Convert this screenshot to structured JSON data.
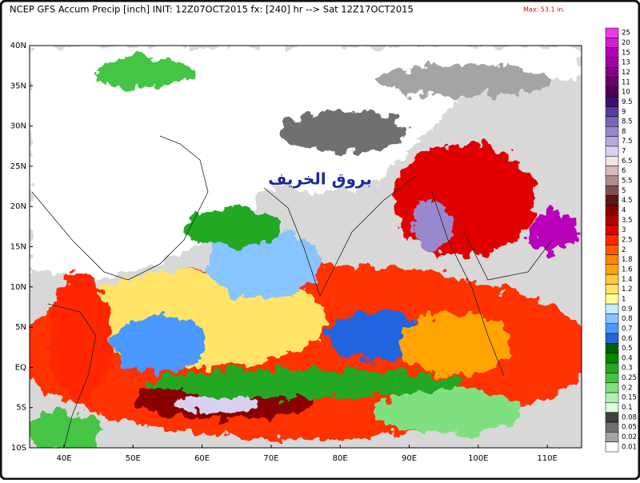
{
  "header": {
    "title": "NCEP GFS Accum Precip [inch] INIT: 12Z07OCT2015 fx: [240] hr --> Sat 12Z17OCT2015",
    "max_label": "Max: 53.1 in."
  },
  "map": {
    "watermark": "بروق الخريف",
    "lat_labels": [
      "40N",
      "35N",
      "30N",
      "25N",
      "20N",
      "15N",
      "10N",
      "5N",
      "EQ",
      "5S",
      "10S"
    ],
    "lon_labels": [
      "40E",
      "50E",
      "60E",
      "70E",
      "80E",
      "90E",
      "100E",
      "110E"
    ]
  },
  "colorbar": {
    "labels": [
      "25",
      "20",
      "15",
      "13",
      "12",
      "11",
      "10",
      "9.5",
      "9",
      "8.5",
      "8",
      "7.5",
      "7",
      "6.5",
      "6",
      "5.5",
      "5",
      "4.5",
      "4",
      "3.5",
      "3",
      "2.5",
      "2",
      "1.8",
      "1.6",
      "1.4",
      "1.2",
      "1",
      "0.9",
      "0.8",
      "0.7",
      "0.6",
      "0.5",
      "0.4",
      "0.3",
      "0.25",
      "0.2",
      "0.15",
      "0.1",
      "0.08",
      "0.05",
      "0.02",
      "0.01"
    ],
    "colors": [
      "#e83ce8",
      "#d020d0",
      "#b800b8",
      "#a000a0",
      "#860086",
      "#6a006a",
      "#500050",
      "#3c1070",
      "#5a3ca0",
      "#7a64b8",
      "#9a88cc",
      "#b8aadc",
      "#d8d0f0",
      "#f0e4e4",
      "#d8b8b8",
      "#b08c8c",
      "#805050",
      "#5a1818",
      "#880000",
      "#b40000",
      "#e00000",
      "#ff2800",
      "#ff5800",
      "#ff8400",
      "#ffa400",
      "#ffc840",
      "#ffe468",
      "#ffff98",
      "#c4ecff",
      "#88c4ff",
      "#4c98ff",
      "#2464e0",
      "#006000",
      "#008a00",
      "#24a824",
      "#44c444",
      "#80e080",
      "#b4f0b4",
      "#dcffdc",
      "#404040",
      "#707070",
      "#a4a4a4",
      "#ffffff"
    ]
  }
}
